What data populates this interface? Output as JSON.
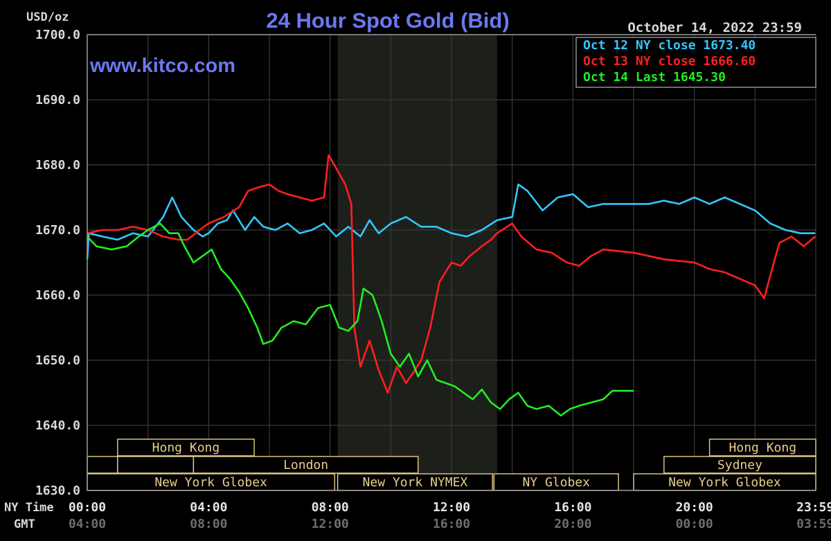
{
  "chart_data": {
    "type": "line",
    "title": "24 Hour Spot Gold (Bid)",
    "watermark": "www.kitco.com",
    "timestamp": "October 14, 2022 23:59",
    "ylabel": "USD/oz",
    "ylim": [
      1630,
      1700
    ],
    "y_ticks": [
      "1700.0",
      "1690.0",
      "1680.0",
      "1670.0",
      "1660.0",
      "1650.0",
      "1640.0",
      "1630.0"
    ],
    "x_row_labels": [
      "NY Time",
      "GMT"
    ],
    "x_ticks_ny": [
      "00:00",
      "04:00",
      "08:00",
      "12:00",
      "16:00",
      "20:00",
      "23:59"
    ],
    "x_ticks_gmt": [
      "04:00",
      "08:00",
      "12:00",
      "16:00",
      "20:00",
      "00:00",
      "03:59"
    ],
    "x_tick_hours": [
      0,
      4,
      8,
      12,
      16,
      20,
      23.983
    ],
    "shaded_region_hours": [
      8.25,
      13.5
    ],
    "grid": true,
    "legend": {
      "placement": "top-right",
      "entries": [
        {
          "label": "Oct 12 NY close 1673.40",
          "color": "#33c8ff"
        },
        {
          "label": "Oct 13 NY close 1666.60",
          "color": "#ff2020"
        },
        {
          "label": "Oct 14 Last 1645.30",
          "color": "#22ee22"
        }
      ]
    },
    "sessions": [
      {
        "label": "Hong Kong",
        "start": 1.0,
        "end": 5.5,
        "row": 0
      },
      {
        "label": "",
        "start": 0.0,
        "end": 1.0,
        "row": 1
      },
      {
        "label": "",
        "start": 1.0,
        "end": 3.5,
        "row": 1
      },
      {
        "label": "London",
        "start": 3.5,
        "end": 10.9,
        "row": 1
      },
      {
        "label": "New York Globex",
        "start": 0.0,
        "end": 8.15,
        "row": 2
      },
      {
        "label": "New York NYMEX",
        "start": 8.25,
        "end": 13.35,
        "row": 2
      },
      {
        "label": "NY Globex",
        "start": 13.4,
        "end": 17.5,
        "row": 2
      },
      {
        "label": "Hong Kong",
        "start": 20.5,
        "end": 24.0,
        "row": 0
      },
      {
        "label": "Sydney",
        "start": 19.0,
        "end": 24.0,
        "row": 1
      },
      {
        "label": "New York Globex",
        "start": 18.0,
        "end": 24.0,
        "row": 2
      }
    ],
    "x_unit": "hours since 00:00 NY time",
    "series": [
      {
        "name": "Oct 12",
        "color": "#33c8ff",
        "points": [
          [
            0,
            1665.5
          ],
          [
            0.05,
            1669.5
          ],
          [
            0.5,
            1669.0
          ],
          [
            1.0,
            1668.5
          ],
          [
            1.5,
            1669.5
          ],
          [
            2.0,
            1669.0
          ],
          [
            2.5,
            1672.0
          ],
          [
            2.8,
            1675.0
          ],
          [
            3.1,
            1672.0
          ],
          [
            3.5,
            1670.0
          ],
          [
            3.8,
            1669.0
          ],
          [
            4.0,
            1669.5
          ],
          [
            4.3,
            1671.0
          ],
          [
            4.6,
            1671.5
          ],
          [
            4.8,
            1673.0
          ],
          [
            5.0,
            1671.5
          ],
          [
            5.2,
            1670.0
          ],
          [
            5.5,
            1672.0
          ],
          [
            5.8,
            1670.5
          ],
          [
            6.2,
            1670.0
          ],
          [
            6.6,
            1671.0
          ],
          [
            7.0,
            1669.5
          ],
          [
            7.4,
            1670.0
          ],
          [
            7.8,
            1671.0
          ],
          [
            8.2,
            1669.0
          ],
          [
            8.6,
            1670.5
          ],
          [
            9.0,
            1669.0
          ],
          [
            9.3,
            1671.5
          ],
          [
            9.6,
            1669.5
          ],
          [
            10.0,
            1671.0
          ],
          [
            10.5,
            1672.0
          ],
          [
            11.0,
            1670.5
          ],
          [
            11.5,
            1670.5
          ],
          [
            12.0,
            1669.5
          ],
          [
            12.5,
            1669.0
          ],
          [
            13.0,
            1670.0
          ],
          [
            13.5,
            1671.5
          ],
          [
            14.0,
            1672.0
          ],
          [
            14.2,
            1677.0
          ],
          [
            14.5,
            1676.0
          ],
          [
            15.0,
            1673.0
          ],
          [
            15.5,
            1675.0
          ],
          [
            16.0,
            1675.5
          ],
          [
            16.5,
            1673.5
          ],
          [
            17.0,
            1674.0
          ],
          [
            18.0,
            1674.0
          ],
          [
            18.5,
            1674.0
          ],
          [
            19.0,
            1674.5
          ],
          [
            19.5,
            1674.0
          ],
          [
            20.0,
            1675.0
          ],
          [
            20.5,
            1674.0
          ],
          [
            21.0,
            1675.0
          ],
          [
            21.5,
            1674.0
          ],
          [
            22.0,
            1673.0
          ],
          [
            22.5,
            1671.0
          ],
          [
            23.0,
            1670.0
          ],
          [
            23.5,
            1669.5
          ],
          [
            23.983,
            1669.5
          ]
        ]
      },
      {
        "name": "Oct 13",
        "color": "#ff2020",
        "points": [
          [
            0,
            1669.5
          ],
          [
            0.5,
            1670.0
          ],
          [
            1.0,
            1670.0
          ],
          [
            1.5,
            1670.5
          ],
          [
            2.0,
            1670.0
          ],
          [
            2.5,
            1669.0
          ],
          [
            3.0,
            1668.5
          ],
          [
            3.3,
            1668.5
          ],
          [
            3.7,
            1670.0
          ],
          [
            4.0,
            1671.0
          ],
          [
            4.5,
            1672.0
          ],
          [
            5.0,
            1673.5
          ],
          [
            5.3,
            1676.0
          ],
          [
            5.6,
            1676.5
          ],
          [
            6.0,
            1677.0
          ],
          [
            6.3,
            1676.0
          ],
          [
            6.6,
            1675.5
          ],
          [
            7.0,
            1675.0
          ],
          [
            7.4,
            1674.5
          ],
          [
            7.8,
            1675.0
          ],
          [
            7.95,
            1681.5
          ],
          [
            8.2,
            1679.5
          ],
          [
            8.5,
            1677.0
          ],
          [
            8.7,
            1674.0
          ],
          [
            8.8,
            1655.0
          ],
          [
            9.0,
            1649.0
          ],
          [
            9.3,
            1653.0
          ],
          [
            9.6,
            1648.5
          ],
          [
            9.9,
            1645.0
          ],
          [
            10.2,
            1649.0
          ],
          [
            10.5,
            1646.5
          ],
          [
            10.8,
            1648.5
          ],
          [
            11.0,
            1650.0
          ],
          [
            11.3,
            1655.0
          ],
          [
            11.6,
            1662.0
          ],
          [
            12.0,
            1665.0
          ],
          [
            12.3,
            1664.5
          ],
          [
            12.6,
            1666.0
          ],
          [
            13.0,
            1667.5
          ],
          [
            13.3,
            1668.5
          ],
          [
            13.5,
            1669.5
          ],
          [
            14.0,
            1671.0
          ],
          [
            14.3,
            1669.0
          ],
          [
            14.8,
            1667.0
          ],
          [
            15.3,
            1666.5
          ],
          [
            15.8,
            1665.0
          ],
          [
            16.2,
            1664.5
          ],
          [
            16.6,
            1666.0
          ],
          [
            17.0,
            1667.0
          ],
          [
            18.0,
            1666.5
          ],
          [
            19.0,
            1665.5
          ],
          [
            20.0,
            1665.0
          ],
          [
            20.5,
            1664.0
          ],
          [
            21.0,
            1663.5
          ],
          [
            21.5,
            1662.5
          ],
          [
            22.0,
            1661.5
          ],
          [
            22.3,
            1659.5
          ],
          [
            22.5,
            1663.0
          ],
          [
            22.8,
            1668.0
          ],
          [
            23.2,
            1669.0
          ],
          [
            23.6,
            1667.5
          ],
          [
            23.983,
            1669.0
          ]
        ]
      },
      {
        "name": "Oct 14",
        "color": "#22ee22",
        "points": [
          [
            0,
            1669.0
          ],
          [
            0.3,
            1667.5
          ],
          [
            0.8,
            1667.0
          ],
          [
            1.3,
            1667.5
          ],
          [
            1.7,
            1669.0
          ],
          [
            2.0,
            1670.0
          ],
          [
            2.4,
            1671.0
          ],
          [
            2.7,
            1669.5
          ],
          [
            3.0,
            1669.5
          ],
          [
            3.2,
            1667.5
          ],
          [
            3.5,
            1665.0
          ],
          [
            3.8,
            1666.0
          ],
          [
            4.1,
            1667.0
          ],
          [
            4.4,
            1664.0
          ],
          [
            4.7,
            1662.5
          ],
          [
            5.0,
            1660.5
          ],
          [
            5.3,
            1658.0
          ],
          [
            5.6,
            1655.0
          ],
          [
            5.8,
            1652.5
          ],
          [
            6.1,
            1653.0
          ],
          [
            6.4,
            1655.0
          ],
          [
            6.8,
            1656.0
          ],
          [
            7.2,
            1655.5
          ],
          [
            7.6,
            1658.0
          ],
          [
            8.0,
            1658.5
          ],
          [
            8.3,
            1655.0
          ],
          [
            8.6,
            1654.5
          ],
          [
            8.9,
            1656.0
          ],
          [
            9.1,
            1661.0
          ],
          [
            9.4,
            1660.0
          ],
          [
            9.7,
            1656.0
          ],
          [
            10.0,
            1651.0
          ],
          [
            10.3,
            1649.0
          ],
          [
            10.6,
            1651.0
          ],
          [
            10.9,
            1647.5
          ],
          [
            11.2,
            1650.0
          ],
          [
            11.5,
            1647.0
          ],
          [
            11.8,
            1646.5
          ],
          [
            12.1,
            1646.0
          ],
          [
            12.4,
            1645.0
          ],
          [
            12.7,
            1644.0
          ],
          [
            13.0,
            1645.5
          ],
          [
            13.3,
            1643.5
          ],
          [
            13.6,
            1642.5
          ],
          [
            13.9,
            1644.0
          ],
          [
            14.2,
            1645.0
          ],
          [
            14.5,
            1643.0
          ],
          [
            14.8,
            1642.5
          ],
          [
            15.2,
            1643.0
          ],
          [
            15.6,
            1641.5
          ],
          [
            15.9,
            1642.5
          ],
          [
            16.2,
            1643.0
          ],
          [
            16.6,
            1643.5
          ],
          [
            17.0,
            1644.0
          ],
          [
            17.3,
            1645.3
          ],
          [
            18.0,
            1645.3
          ]
        ]
      }
    ]
  }
}
